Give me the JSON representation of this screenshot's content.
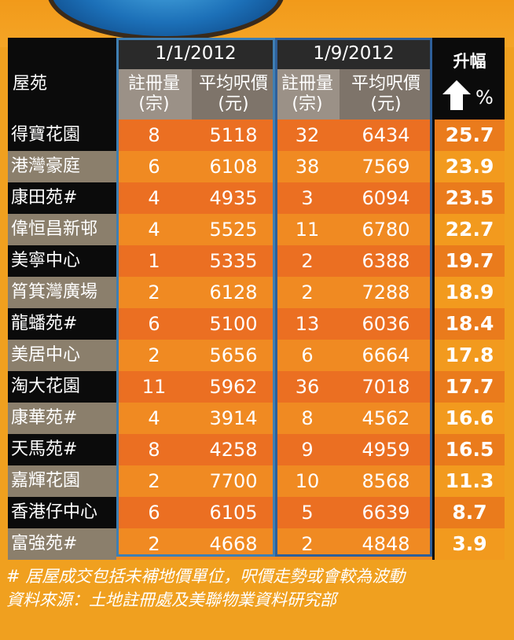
{
  "header": {
    "estate_label": "屋苑",
    "period1": "1/1/2012",
    "period2": "1/9/2012",
    "reg_label": "註冊量",
    "reg_unit": "(宗)",
    "avg_label": "平均呎價",
    "avg_unit": "(元)",
    "rise_label": "升幅",
    "pct_symbol": "%"
  },
  "colors": {
    "dark_cell": "#0b0b0b",
    "orange": "#eb6f22",
    "light_orange": "#f08a22",
    "frame_blue": "#3f7fb3"
  },
  "chart_data": {
    "type": "table",
    "columns": [
      "屋苑",
      "1/1/2012 註冊量(宗)",
      "1/1/2012 平均呎價(元)",
      "1/9/2012 註冊量(宗)",
      "1/9/2012 平均呎價(元)",
      "升幅 %"
    ],
    "rows": [
      [
        "得寶花園",
        "8",
        "5118",
        "32",
        "6434",
        "25.7"
      ],
      [
        "港灣豪庭",
        "6",
        "6108",
        "38",
        "7569",
        "23.9"
      ],
      [
        "康田苑#",
        "4",
        "4935",
        "3",
        "6094",
        "23.5"
      ],
      [
        "偉恒昌新邨",
        "4",
        "5525",
        "11",
        "6780",
        "22.7"
      ],
      [
        "美寧中心",
        "1",
        "5335",
        "2",
        "6388",
        "19.7"
      ],
      [
        "筲箕灣廣場",
        "2",
        "6128",
        "2",
        "7288",
        "18.9"
      ],
      [
        "龍蟠苑#",
        "6",
        "5100",
        "13",
        "6036",
        "18.4"
      ],
      [
        "美居中心",
        "2",
        "5656",
        "6",
        "6664",
        "17.8"
      ],
      [
        "淘大花園",
        "11",
        "5962",
        "36",
        "7018",
        "17.7"
      ],
      [
        "康華苑#",
        "4",
        "3914",
        "8",
        "4562",
        "16.6"
      ],
      [
        "天馬苑#",
        "8",
        "4258",
        "9",
        "4959",
        "16.5"
      ],
      [
        "嘉輝花園",
        "2",
        "7700",
        "10",
        "8568",
        "11.3"
      ],
      [
        "香港仔中心",
        "6",
        "6105",
        "5",
        "6639",
        "8.7"
      ],
      [
        "富強苑#",
        "2",
        "4668",
        "2",
        "4848",
        "3.9"
      ]
    ]
  },
  "notes": {
    "line1": "# 居屋成交包括未補地價單位，呎價走勢或會較為波動",
    "line2": "資料來源：土地註冊處及美聯物業資料研究部"
  }
}
